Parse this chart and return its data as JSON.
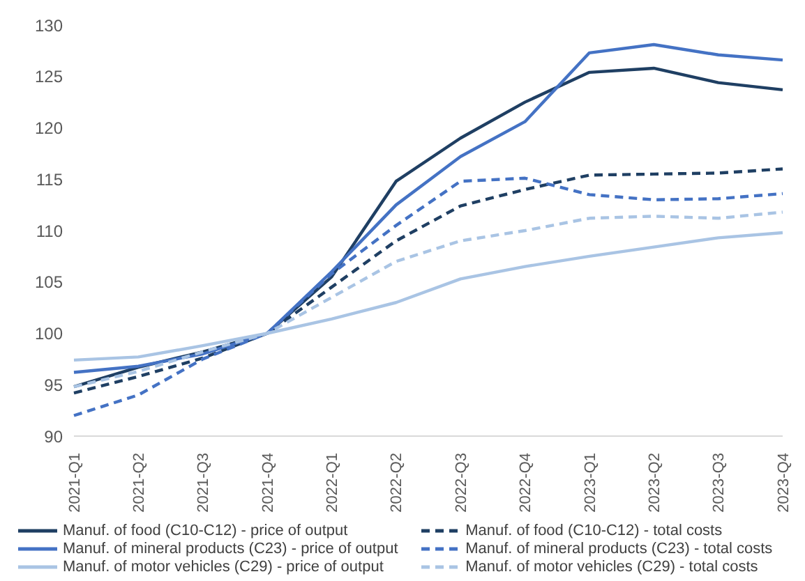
{
  "chart_data": {
    "type": "line",
    "categories": [
      "2021-Q1",
      "2021-Q2",
      "2021-Q3",
      "2021-Q4",
      "2022-Q1",
      "2022-Q2",
      "2022-Q3",
      "2022-Q4",
      "2023-Q1",
      "2023-Q2",
      "2023-Q3",
      "2023-Q4"
    ],
    "series": [
      {
        "name": "Manuf. of food (C10-C12) - price of output",
        "color": "#1f3f63",
        "line_style": "solid",
        "values": [
          94.8,
          96.7,
          98.2,
          100,
          105.5,
          114.8,
          119,
          122.5,
          125.4,
          125.8,
          124.4,
          123.7
        ]
      },
      {
        "name": "Manuf. of food (C10-C12) - total costs",
        "color": "#1f3f63",
        "line_style": "dashed",
        "values": [
          94.2,
          95.8,
          97.6,
          100,
          104.5,
          109,
          112.4,
          114,
          115.4,
          115.5,
          115.6,
          116
        ]
      },
      {
        "name": "Manuf. of mineral products (C23) - price of output",
        "color": "#4472c4",
        "line_style": "solid",
        "values": [
          96.2,
          96.8,
          98,
          100,
          106,
          112.5,
          117.2,
          120.6,
          127.3,
          128.1,
          127.1,
          126.6
        ]
      },
      {
        "name": "Manuf. of mineral products (C23) - total costs",
        "color": "#4472c4",
        "line_style": "dashed",
        "values": [
          92,
          94,
          97.5,
          100,
          105.8,
          110.5,
          114.8,
          115.1,
          113.5,
          113,
          113.1,
          113.6
        ]
      },
      {
        "name": "Manuf. of motor vehicles (C29) - price of output",
        "color": "#a9c4e4",
        "line_style": "solid",
        "values": [
          97.4,
          97.7,
          98.8,
          100,
          101.4,
          103,
          105.3,
          106.5,
          107.5,
          108.4,
          109.3,
          109.8
        ]
      },
      {
        "name": "Manuf. of motor vehicles (C29) - total costs",
        "color": "#a9c4e4",
        "line_style": "dashed",
        "values": [
          94.8,
          96.3,
          98.2,
          100,
          103.5,
          107,
          109,
          110,
          111.2,
          111.4,
          111.2,
          111.8
        ]
      }
    ],
    "ylim": [
      90,
      130
    ],
    "yticks": [
      90,
      95,
      100,
      105,
      110,
      115,
      120,
      125,
      130
    ],
    "grid": false,
    "legend": "bottom",
    "marker": "none"
  }
}
